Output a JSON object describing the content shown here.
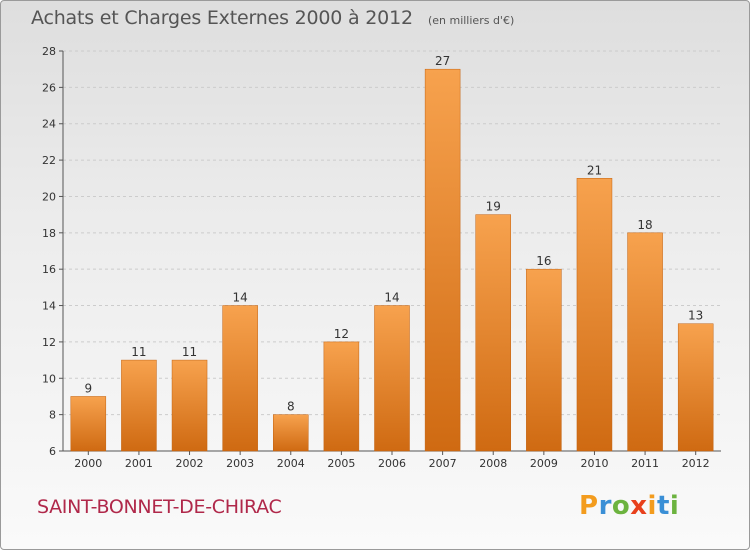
{
  "header": {
    "title": "Achats et Charges Externes 2000 à 2012",
    "subtitle": "(en milliers d'€)"
  },
  "footer": {
    "commune": "SAINT-BONNET-DE-CHIRAC",
    "logo_text": "Proxiti",
    "logo_colors": [
      "#f39c1e",
      "#3a8fd6",
      "#6cb33f",
      "#e8401c",
      "#f39c1e",
      "#3a8fd6",
      "#6cb33f"
    ]
  },
  "colors": {
    "bar_top": "#f7a24e",
    "bar_bottom": "#cf6a12",
    "grid": "#cccccc"
  },
  "chart_data": {
    "type": "bar",
    "title": "Achats et Charges Externes 2000 à 2012",
    "subtitle": "(en milliers d'€)",
    "categories": [
      "2000",
      "2001",
      "2002",
      "2003",
      "2004",
      "2005",
      "2006",
      "2007",
      "2008",
      "2009",
      "2010",
      "2011",
      "2012"
    ],
    "values": [
      9,
      11,
      11,
      14,
      8,
      12,
      14,
      27,
      19,
      16,
      21,
      18,
      13
    ],
    "ylim": [
      6,
      28
    ],
    "yticks": [
      6,
      8,
      10,
      12,
      14,
      16,
      18,
      20,
      22,
      24,
      26,
      28
    ],
    "xlabel": "",
    "ylabel": "",
    "grid": "horizontal dashed"
  }
}
